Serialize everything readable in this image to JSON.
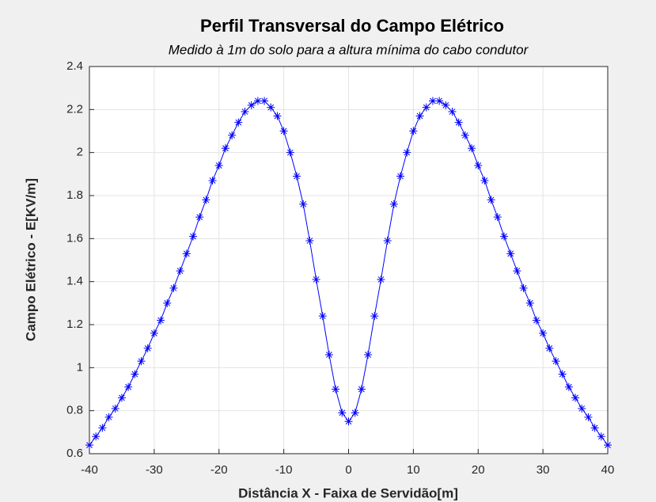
{
  "chart_data": {
    "type": "line",
    "title": "Perfil Transversal do Campo Elétrico",
    "subtitle": "Medido à  1m do solo para a altura mínima do cabo condutor",
    "x_label": "Distância X - Faixa de Servidão[m]",
    "y_label": "Campo Elétrico - E[KV/m]",
    "x": [
      -40,
      -39,
      -38,
      -37,
      -36,
      -35,
      -34,
      -33,
      -32,
      -31,
      -30,
      -29,
      -28,
      -27,
      -26,
      -25,
      -24,
      -23,
      -22,
      -21,
      -20,
      -19,
      -18,
      -17,
      -16,
      -15,
      -14,
      -13,
      -12,
      -11,
      -10,
      -9,
      -8,
      -7,
      -6,
      -5,
      -4,
      -3,
      -2,
      -1,
      0,
      1,
      2,
      3,
      4,
      5,
      6,
      7,
      8,
      9,
      10,
      11,
      12,
      13,
      14,
      15,
      16,
      17,
      18,
      19,
      20,
      21,
      22,
      23,
      24,
      25,
      26,
      27,
      28,
      29,
      30,
      31,
      32,
      33,
      34,
      35,
      36,
      37,
      38,
      39,
      40
    ],
    "series": [
      {
        "color": "#0000ff",
        "marker": "asterisk",
        "values": [
          0.64,
          0.68,
          0.72,
          0.77,
          0.81,
          0.86,
          0.91,
          0.97,
          1.03,
          1.09,
          1.16,
          1.22,
          1.3,
          1.37,
          1.45,
          1.53,
          1.61,
          1.7,
          1.78,
          1.87,
          1.94,
          2.02,
          2.08,
          2.14,
          2.19,
          2.22,
          2.24,
          2.24,
          2.21,
          2.17,
          2.1,
          2.0,
          1.89,
          1.76,
          1.59,
          1.41,
          1.24,
          1.06,
          0.9,
          0.79,
          0.75,
          0.79,
          0.9,
          1.06,
          1.24,
          1.41,
          1.59,
          1.76,
          1.89,
          2.0,
          2.1,
          2.17,
          2.21,
          2.24,
          2.24,
          2.22,
          2.19,
          2.14,
          2.08,
          2.02,
          1.94,
          1.87,
          1.78,
          1.7,
          1.61,
          1.53,
          1.45,
          1.37,
          1.3,
          1.22,
          1.16,
          1.09,
          1.03,
          0.97,
          0.91,
          0.86,
          0.81,
          0.77,
          0.72,
          0.68,
          0.64
        ]
      }
    ],
    "xlim": [
      -40,
      40
    ],
    "xticks": [
      -40,
      -30,
      -20,
      -10,
      0,
      10,
      20,
      30,
      40
    ],
    "ylim": [
      0.6,
      2.4
    ],
    "yticks": [
      0.6,
      0.8,
      1,
      1.2,
      1.4,
      1.6,
      1.8,
      2,
      2.2,
      2.4
    ],
    "grid": true
  }
}
